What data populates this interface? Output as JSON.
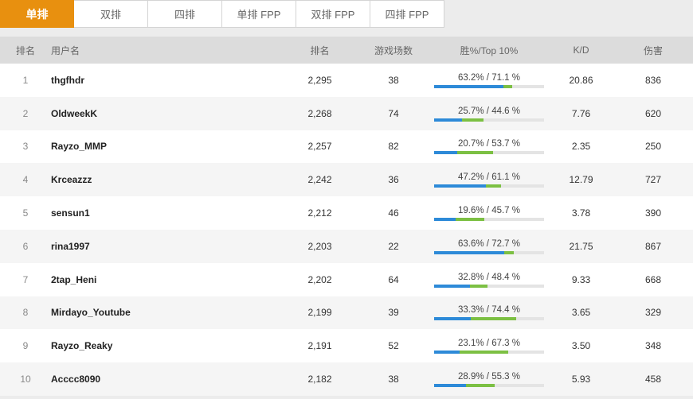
{
  "tabs": [
    "单排",
    "双排",
    "四排",
    "单排 FPP",
    "双排 FPP",
    "四排 FPP"
  ],
  "active_tab": 0,
  "colors": {
    "accent": "#e8900f",
    "win_bar": "#2d8ad8",
    "top10_bar": "#7cc043"
  },
  "headers": {
    "rank": "排名",
    "user": "用户名",
    "rating": "排名",
    "games": "游戏场数",
    "win_top": "胜%/Top 10%",
    "kd": "K/D",
    "damage": "伤害"
  },
  "rows": [
    {
      "rank": "1",
      "user": "thgfhdr",
      "rating": "2,295",
      "games": "38",
      "win_top": "63.2% / 71.1 %",
      "win": 63.2,
      "top10": 71.1,
      "kd": "20.86",
      "damage": "836"
    },
    {
      "rank": "2",
      "user": "OldweekK",
      "rating": "2,268",
      "games": "74",
      "win_top": "25.7% / 44.6 %",
      "win": 25.7,
      "top10": 44.6,
      "kd": "7.76",
      "damage": "620"
    },
    {
      "rank": "3",
      "user": "Rayzo_MMP",
      "rating": "2,257",
      "games": "82",
      "win_top": "20.7% / 53.7 %",
      "win": 20.7,
      "top10": 53.7,
      "kd": "2.35",
      "damage": "250"
    },
    {
      "rank": "4",
      "user": "Krceazzz",
      "rating": "2,242",
      "games": "36",
      "win_top": "47.2% / 61.1 %",
      "win": 47.2,
      "top10": 61.1,
      "kd": "12.79",
      "damage": "727"
    },
    {
      "rank": "5",
      "user": "sensun1",
      "rating": "2,212",
      "games": "46",
      "win_top": "19.6% / 45.7 %",
      "win": 19.6,
      "top10": 45.7,
      "kd": "3.78",
      "damage": "390"
    },
    {
      "rank": "6",
      "user": "rina1997",
      "rating": "2,203",
      "games": "22",
      "win_top": "63.6% / 72.7 %",
      "win": 63.6,
      "top10": 72.7,
      "kd": "21.75",
      "damage": "867"
    },
    {
      "rank": "7",
      "user": "2tap_Heni",
      "rating": "2,202",
      "games": "64",
      "win_top": "32.8% / 48.4 %",
      "win": 32.8,
      "top10": 48.4,
      "kd": "9.33",
      "damage": "668"
    },
    {
      "rank": "8",
      "user": "Mirdayo_Youtube",
      "rating": "2,199",
      "games": "39",
      "win_top": "33.3% / 74.4 %",
      "win": 33.3,
      "top10": 74.4,
      "kd": "3.65",
      "damage": "329"
    },
    {
      "rank": "9",
      "user": "Rayzo_Reaky",
      "rating": "2,191",
      "games": "52",
      "win_top": "23.1% / 67.3 %",
      "win": 23.1,
      "top10": 67.3,
      "kd": "3.50",
      "damage": "348"
    },
    {
      "rank": "10",
      "user": "Acccc8090",
      "rating": "2,182",
      "games": "38",
      "win_top": "28.9% / 55.3 %",
      "win": 28.9,
      "top10": 55.3,
      "kd": "5.93",
      "damage": "458"
    }
  ]
}
